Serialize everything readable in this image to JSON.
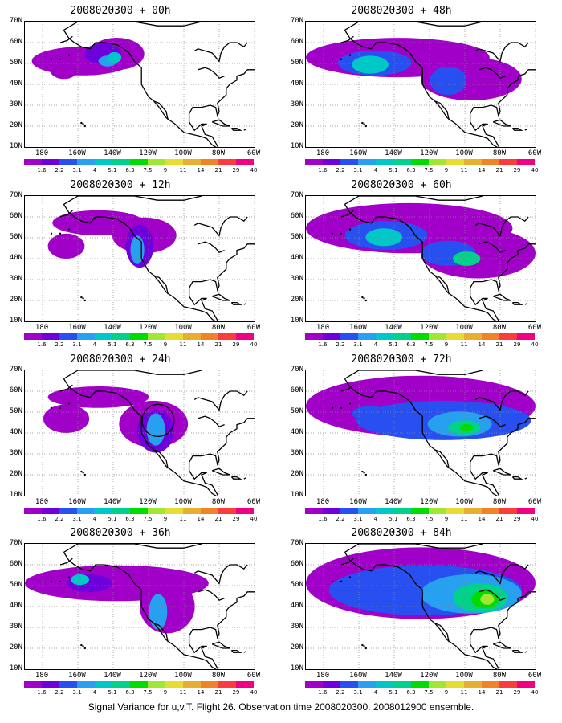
{
  "caption": "Signal Variance for u,v,T. Flight 26. Observation time 2008020300. 2008012900 ensemble.",
  "lat_labels": [
    "70N",
    "60N",
    "50N",
    "40N",
    "30N",
    "20N",
    "10N"
  ],
  "lon_labels": [
    "180",
    "160W",
    "140W",
    "120W",
    "100W",
    "80W",
    "60W"
  ],
  "colorbar": {
    "colors": [
      "#a000c8",
      "#6e00dc",
      "#2850f0",
      "#28a0f0",
      "#00c8c8",
      "#00d28c",
      "#00dc00",
      "#a0e632",
      "#e6dc32",
      "#e6af2d",
      "#f08228",
      "#fa3c3c",
      "#f00082"
    ],
    "labels": [
      "1.6",
      "2.2",
      "3.1",
      "4",
      "5.1",
      "6.3",
      "7.5",
      "9",
      "11",
      "14",
      "21",
      "29",
      "40"
    ]
  },
  "panels": [
    {
      "title": "2008020300 + 00h",
      "levels": [
        {
          "cx": 25,
          "cy": 48,
          "rx": 22,
          "ry": 8,
          "lvl": 0
        },
        {
          "cx": 40,
          "cy": 52,
          "rx": 12,
          "ry": 9,
          "lvl": 0
        },
        {
          "cx": 17,
          "cy": 43,
          "rx": 6,
          "ry": 5,
          "lvl": 0
        },
        {
          "cx": 34,
          "cy": 52,
          "rx": 8,
          "ry": 6,
          "lvl": 1
        },
        {
          "cx": 36,
          "cy": 48,
          "rx": 4,
          "ry": 3,
          "lvl": 3
        },
        {
          "cx": 39,
          "cy": 50,
          "rx": 3,
          "ry": 3,
          "lvl": 4
        }
      ],
      "circle": null
    },
    {
      "title": "2008020300 + 12h",
      "levels": [
        {
          "cx": 32,
          "cy": 55,
          "rx": 20,
          "ry": 7,
          "lvl": 0
        },
        {
          "cx": 52,
          "cy": 48,
          "rx": 14,
          "ry": 10,
          "lvl": 0
        },
        {
          "cx": 18,
          "cy": 42,
          "rx": 8,
          "ry": 7,
          "lvl": 0
        },
        {
          "cx": 50,
          "cy": 42,
          "rx": 6,
          "ry": 12,
          "lvl": 1
        },
        {
          "cx": 49,
          "cy": 40,
          "rx": 3,
          "ry": 8,
          "lvl": 3
        }
      ],
      "circle": null
    },
    {
      "title": "2008020300 + 24h",
      "levels": [
        {
          "cx": 32,
          "cy": 55,
          "rx": 22,
          "ry": 6,
          "lvl": 0
        },
        {
          "cx": 18,
          "cy": 43,
          "rx": 10,
          "ry": 8,
          "lvl": 0
        },
        {
          "cx": 56,
          "cy": 40,
          "rx": 15,
          "ry": 13,
          "lvl": 0
        },
        {
          "cx": 57,
          "cy": 36,
          "rx": 8,
          "ry": 12,
          "lvl": 1
        },
        {
          "cx": 57,
          "cy": 37,
          "rx": 4,
          "ry": 9,
          "lvl": 3
        }
      ],
      "circle": {
        "cx": 58,
        "cy": 42,
        "r": 7
      }
    },
    {
      "title": "2008020300 + 36h",
      "levels": [
        {
          "cx": 40,
          "cy": 48,
          "rx": 40,
          "ry": 10,
          "lvl": 0
        },
        {
          "cx": 62,
          "cy": 35,
          "rx": 12,
          "ry": 15,
          "lvl": 0
        },
        {
          "cx": 28,
          "cy": 48,
          "rx": 10,
          "ry": 5,
          "lvl": 1
        },
        {
          "cx": 24,
          "cy": 50,
          "rx": 4,
          "ry": 3,
          "lvl": 4
        },
        {
          "cx": 58,
          "cy": 32,
          "rx": 4,
          "ry": 10,
          "lvl": 3
        }
      ],
      "circle": null
    },
    {
      "title": "2008020300 + 48h",
      "levels": [
        {
          "cx": 40,
          "cy": 50,
          "rx": 40,
          "ry": 11,
          "lvl": 0
        },
        {
          "cx": 72,
          "cy": 38,
          "rx": 22,
          "ry": 12,
          "lvl": 0
        },
        {
          "cx": 30,
          "cy": 47,
          "rx": 16,
          "ry": 7,
          "lvl": 2
        },
        {
          "cx": 28,
          "cy": 46,
          "rx": 8,
          "ry": 5,
          "lvl": 4
        },
        {
          "cx": 62,
          "cy": 37,
          "rx": 8,
          "ry": 8,
          "lvl": 2
        }
      ],
      "circle": null
    },
    {
      "title": "2008020300 + 60h",
      "levels": [
        {
          "cx": 45,
          "cy": 52,
          "rx": 45,
          "ry": 14,
          "lvl": 0
        },
        {
          "cx": 75,
          "cy": 38,
          "rx": 25,
          "ry": 14,
          "lvl": 0
        },
        {
          "cx": 35,
          "cy": 48,
          "rx": 18,
          "ry": 8,
          "lvl": 2
        },
        {
          "cx": 34,
          "cy": 47,
          "rx": 8,
          "ry": 5,
          "lvl": 4
        },
        {
          "cx": 62,
          "cy": 38,
          "rx": 12,
          "ry": 7,
          "lvl": 2
        },
        {
          "cx": 70,
          "cy": 35,
          "rx": 6,
          "ry": 4,
          "lvl": 5
        }
      ],
      "circle": null
    },
    {
      "title": "2008020300 + 72h",
      "levels": [
        {
          "cx": 50,
          "cy": 50,
          "rx": 50,
          "ry": 17,
          "lvl": 0
        },
        {
          "cx": 60,
          "cy": 42,
          "rx": 38,
          "ry": 11,
          "lvl": 2
        },
        {
          "cx": 28,
          "cy": 46,
          "rx": 8,
          "ry": 4,
          "lvl": 2
        },
        {
          "cx": 67,
          "cy": 40,
          "rx": 14,
          "ry": 7,
          "lvl": 3
        },
        {
          "cx": 69,
          "cy": 38,
          "rx": 7,
          "ry": 4,
          "lvl": 5
        },
        {
          "cx": 70,
          "cy": 38,
          "rx": 3,
          "ry": 2,
          "lvl": 6
        }
      ],
      "circle": null
    },
    {
      "title": "2008020300 + 84h",
      "levels": [
        {
          "cx": 50,
          "cy": 48,
          "rx": 50,
          "ry": 20,
          "lvl": 0
        },
        {
          "cx": 52,
          "cy": 44,
          "rx": 42,
          "ry": 14,
          "lvl": 2
        },
        {
          "cx": 72,
          "cy": 42,
          "rx": 22,
          "ry": 11,
          "lvl": 3
        },
        {
          "cx": 76,
          "cy": 40,
          "rx": 12,
          "ry": 8,
          "lvl": 5
        },
        {
          "cx": 78,
          "cy": 39,
          "rx": 6,
          "ry": 5,
          "lvl": 6
        },
        {
          "cx": 79,
          "cy": 39,
          "rx": 3,
          "ry": 3,
          "lvl": 7
        }
      ],
      "circle": null
    }
  ]
}
